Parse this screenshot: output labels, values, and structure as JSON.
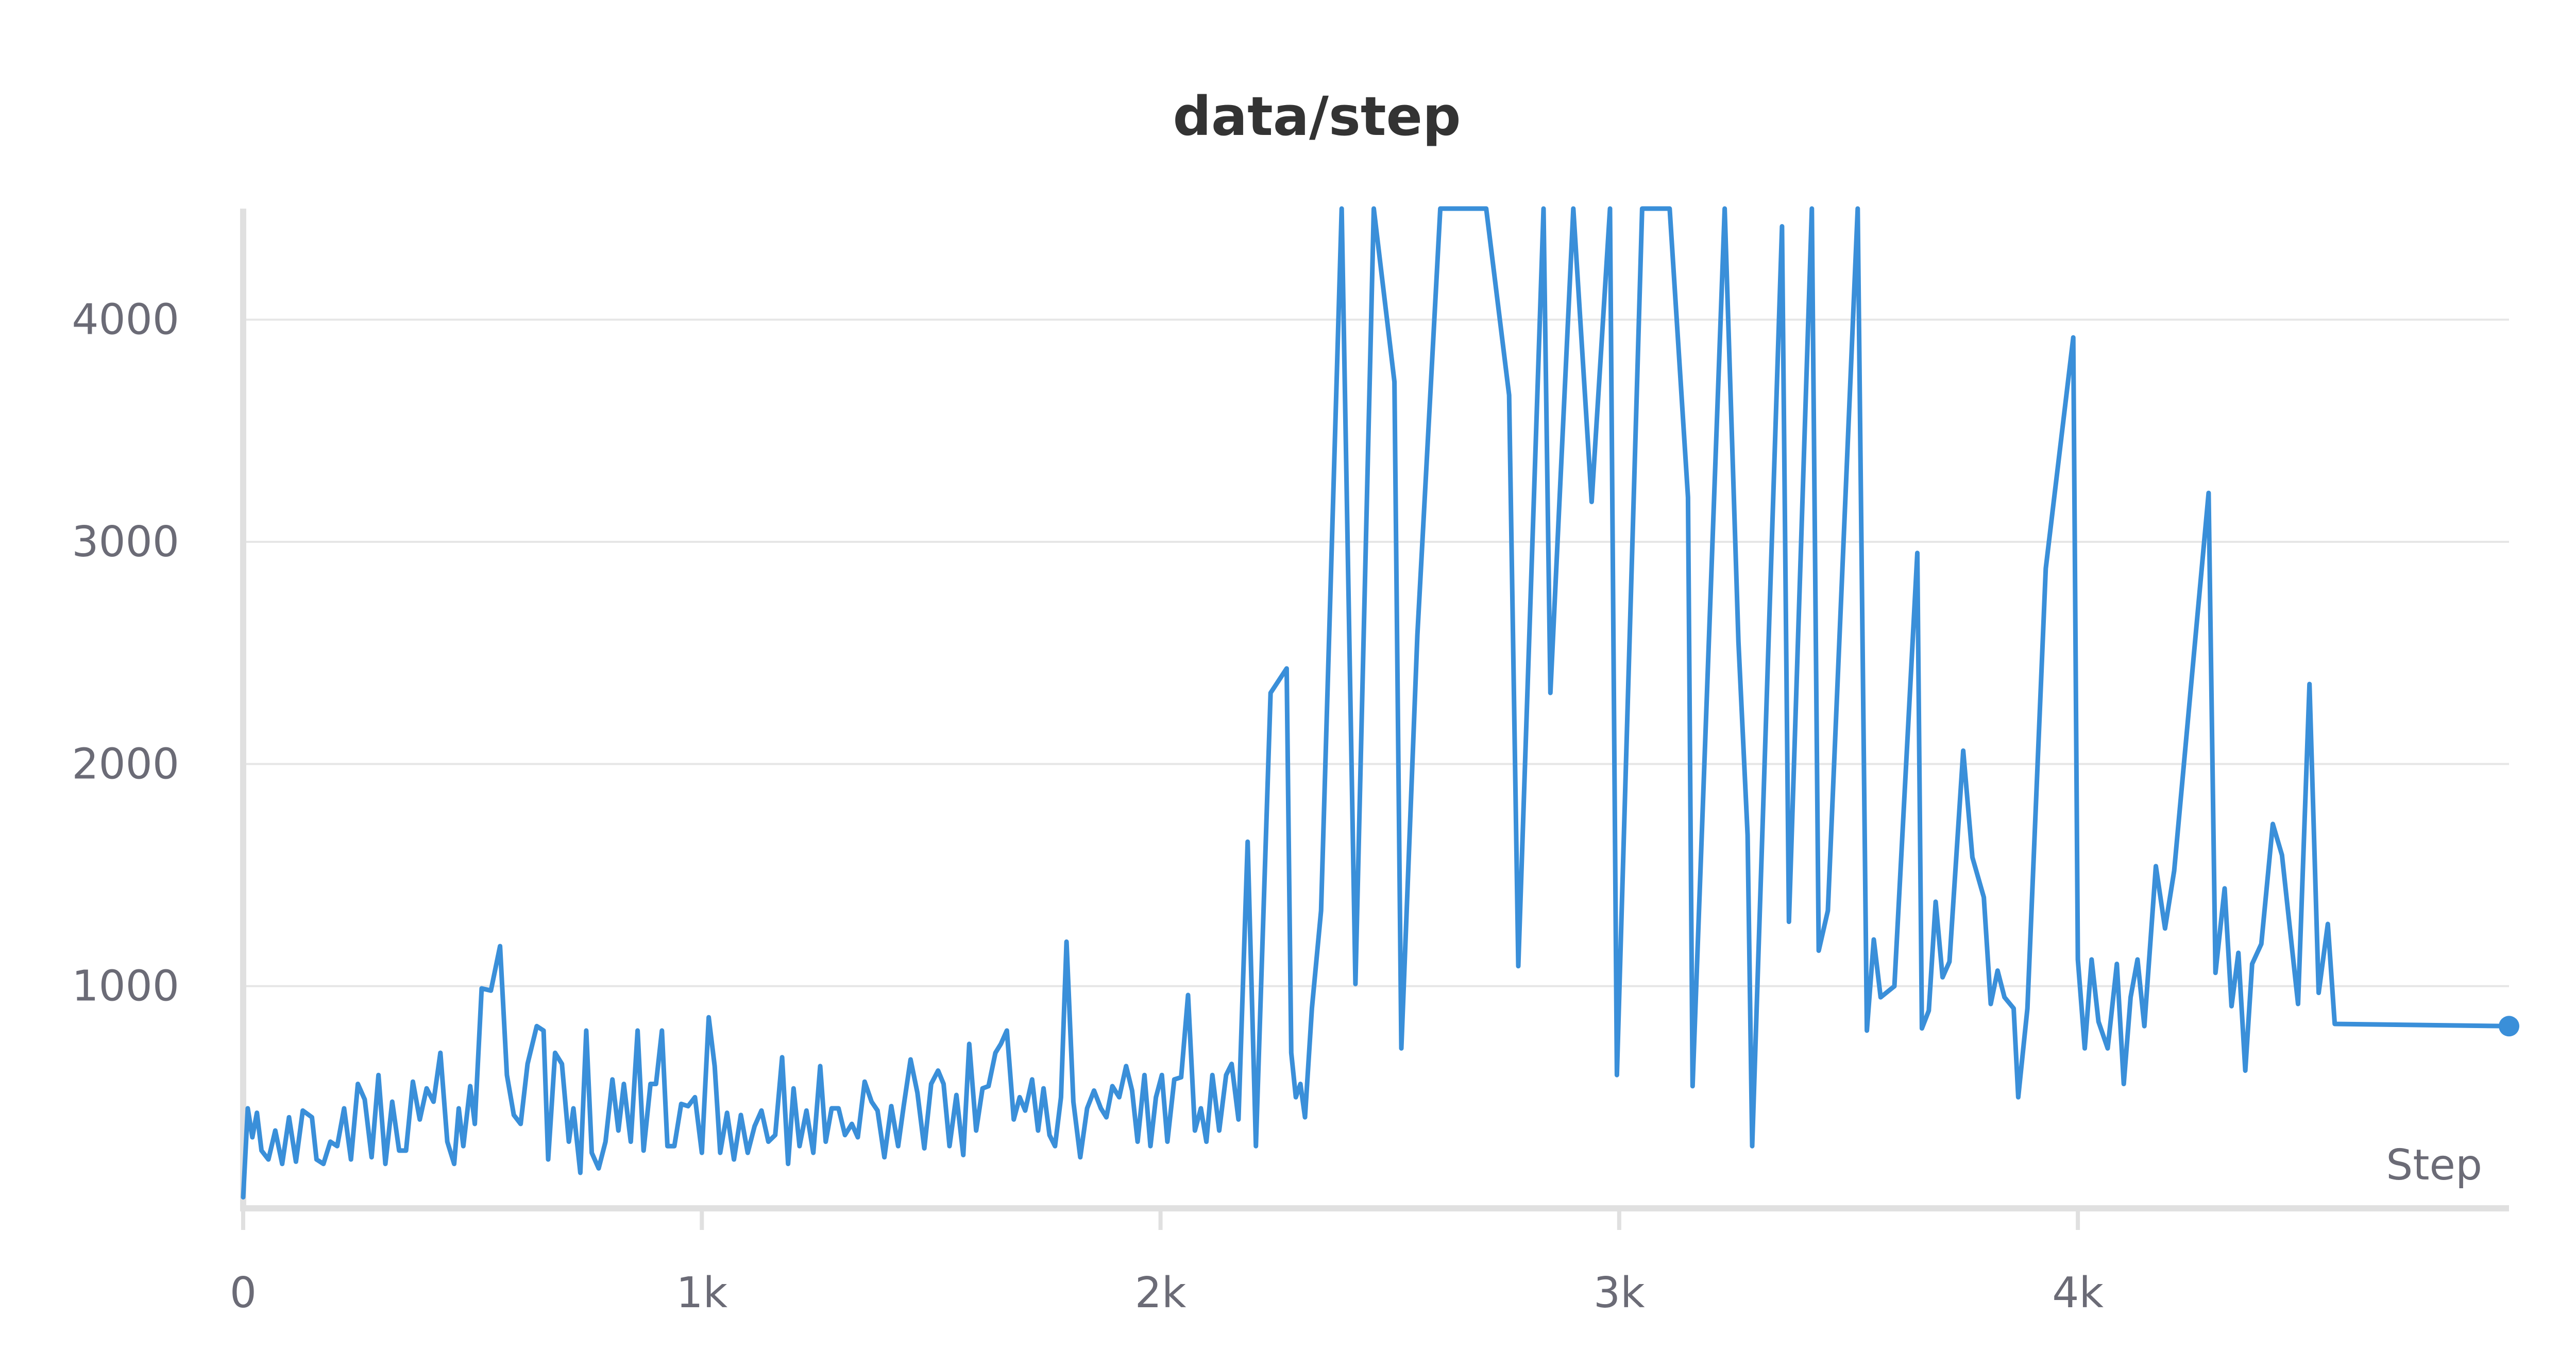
{
  "chart_data": {
    "type": "line",
    "title": "data/step",
    "xlabel": "Step",
    "ylabel": "",
    "xlim": [
      0,
      4940
    ],
    "ylim": [
      0,
      4500
    ],
    "x_ticks": [
      {
        "value": 0,
        "label": "0"
      },
      {
        "value": 1000,
        "label": "1k"
      },
      {
        "value": 2000,
        "label": "2k"
      },
      {
        "value": 3000,
        "label": "3k"
      },
      {
        "value": 4000,
        "label": "4k"
      }
    ],
    "y_ticks": [
      {
        "value": 1000,
        "label": "1000"
      },
      {
        "value": 2000,
        "label": "2000"
      },
      {
        "value": 3000,
        "label": "3000"
      },
      {
        "value": 4000,
        "label": "4000"
      }
    ],
    "grid": true,
    "color": "#3a8fd9",
    "series": [
      {
        "values": [
          [
            0,
            50
          ],
          [
            10,
            450
          ],
          [
            20,
            320
          ],
          [
            30,
            430
          ],
          [
            40,
            260
          ],
          [
            55,
            220
          ],
          [
            70,
            350
          ],
          [
            85,
            200
          ],
          [
            100,
            410
          ],
          [
            115,
            210
          ],
          [
            130,
            440
          ],
          [
            150,
            410
          ],
          [
            160,
            220
          ],
          [
            175,
            200
          ],
          [
            190,
            300
          ],
          [
            205,
            280
          ],
          [
            220,
            450
          ],
          [
            235,
            220
          ],
          [
            250,
            560
          ],
          [
            265,
            490
          ],
          [
            280,
            230
          ],
          [
            295,
            600
          ],
          [
            310,
            200
          ],
          [
            325,
            480
          ],
          [
            340,
            260
          ],
          [
            355,
            260
          ],
          [
            370,
            570
          ],
          [
            385,
            400
          ],
          [
            400,
            540
          ],
          [
            415,
            480
          ],
          [
            430,
            700
          ],
          [
            445,
            300
          ],
          [
            460,
            200
          ],
          [
            470,
            450
          ],
          [
            480,
            280
          ],
          [
            495,
            550
          ],
          [
            505,
            380
          ],
          [
            520,
            990
          ],
          [
            540,
            980
          ],
          [
            560,
            1180
          ],
          [
            575,
            600
          ],
          [
            590,
            420
          ],
          [
            605,
            380
          ],
          [
            620,
            650
          ],
          [
            640,
            820
          ],
          [
            655,
            800
          ],
          [
            665,
            220
          ],
          [
            680,
            700
          ],
          [
            695,
            650
          ],
          [
            710,
            300
          ],
          [
            720,
            450
          ],
          [
            735,
            160
          ],
          [
            748,
            800
          ],
          [
            760,
            250
          ],
          [
            775,
            180
          ],
          [
            790,
            300
          ],
          [
            805,
            580
          ],
          [
            818,
            350
          ],
          [
            830,
            560
          ],
          [
            845,
            300
          ],
          [
            860,
            800
          ],
          [
            873,
            260
          ],
          [
            888,
            560
          ],
          [
            900,
            560
          ],
          [
            913,
            800
          ],
          [
            925,
            280
          ],
          [
            940,
            280
          ],
          [
            955,
            470
          ],
          [
            970,
            460
          ],
          [
            985,
            500
          ],
          [
            1000,
            250
          ],
          [
            1015,
            860
          ],
          [
            1028,
            640
          ],
          [
            1040,
            250
          ],
          [
            1055,
            430
          ],
          [
            1070,
            220
          ],
          [
            1085,
            420
          ],
          [
            1100,
            250
          ],
          [
            1115,
            370
          ],
          [
            1130,
            440
          ],
          [
            1145,
            300
          ],
          [
            1160,
            330
          ],
          [
            1175,
            680
          ],
          [
            1188,
            200
          ],
          [
            1200,
            540
          ],
          [
            1213,
            280
          ],
          [
            1228,
            440
          ],
          [
            1243,
            250
          ],
          [
            1258,
            640
          ],
          [
            1270,
            300
          ],
          [
            1283,
            450
          ],
          [
            1298,
            450
          ],
          [
            1312,
            330
          ],
          [
            1327,
            380
          ],
          [
            1340,
            320
          ],
          [
            1355,
            570
          ],
          [
            1370,
            480
          ],
          [
            1383,
            440
          ],
          [
            1398,
            230
          ],
          [
            1413,
            460
          ],
          [
            1428,
            280
          ],
          [
            1440,
            460
          ],
          [
            1455,
            670
          ],
          [
            1470,
            520
          ],
          [
            1485,
            270
          ],
          [
            1500,
            560
          ],
          [
            1515,
            620
          ],
          [
            1527,
            560
          ],
          [
            1540,
            280
          ],
          [
            1555,
            510
          ],
          [
            1570,
            240
          ],
          [
            1583,
            740
          ],
          [
            1598,
            350
          ],
          [
            1612,
            540
          ],
          [
            1625,
            550
          ],
          [
            1640,
            700
          ],
          [
            1652,
            740
          ],
          [
            1665,
            800
          ],
          [
            1680,
            400
          ],
          [
            1693,
            500
          ],
          [
            1705,
            440
          ],
          [
            1720,
            580
          ],
          [
            1733,
            350
          ],
          [
            1745,
            540
          ],
          [
            1758,
            330
          ],
          [
            1770,
            280
          ],
          [
            1783,
            500
          ],
          [
            1795,
            1200
          ],
          [
            1810,
            480
          ],
          [
            1825,
            230
          ],
          [
            1840,
            450
          ],
          [
            1855,
            530
          ],
          [
            1870,
            450
          ],
          [
            1882,
            410
          ],
          [
            1895,
            550
          ],
          [
            1910,
            500
          ],
          [
            1925,
            640
          ],
          [
            1938,
            530
          ],
          [
            1950,
            300
          ],
          [
            1965,
            600
          ],
          [
            1978,
            280
          ],
          [
            1990,
            500
          ],
          [
            2003,
            600
          ],
          [
            2015,
            300
          ],
          [
            2030,
            580
          ],
          [
            2045,
            590
          ],
          [
            2060,
            960
          ],
          [
            2075,
            350
          ],
          [
            2088,
            450
          ],
          [
            2100,
            300
          ],
          [
            2113,
            600
          ],
          [
            2128,
            350
          ],
          [
            2143,
            600
          ],
          [
            2155,
            650
          ],
          [
            2170,
            400
          ],
          [
            2190,
            1650
          ],
          [
            2208,
            280
          ],
          [
            2240,
            2320
          ],
          [
            2275,
            2430
          ],
          [
            2285,
            700
          ],
          [
            2295,
            500
          ],
          [
            2305,
            560
          ],
          [
            2315,
            410
          ],
          [
            2330,
            900
          ],
          [
            2350,
            1340
          ],
          [
            2395,
            4500
          ],
          [
            2425,
            1010
          ],
          [
            2465,
            4500
          ],
          [
            2510,
            3720
          ],
          [
            2525,
            720
          ],
          [
            2560,
            2580
          ],
          [
            2610,
            4500
          ],
          [
            2710,
            4500
          ],
          [
            2760,
            3660
          ],
          [
            2780,
            1090
          ],
          [
            2835,
            4500
          ],
          [
            2850,
            2320
          ],
          [
            2900,
            4500
          ],
          [
            2940,
            3180
          ],
          [
            2980,
            4500
          ],
          [
            2995,
            600
          ],
          [
            3050,
            4500
          ],
          [
            3110,
            4500
          ],
          [
            3150,
            3200
          ],
          [
            3160,
            550
          ],
          [
            3230,
            4500
          ],
          [
            3260,
            2550
          ],
          [
            3280,
            1680
          ],
          [
            3290,
            280
          ],
          [
            3355,
            4420
          ],
          [
            3370,
            1290
          ],
          [
            3420,
            4500
          ],
          [
            3435,
            1160
          ],
          [
            3455,
            1340
          ],
          [
            3520,
            4500
          ],
          [
            3540,
            800
          ],
          [
            3555,
            1210
          ],
          [
            3570,
            950
          ],
          [
            3600,
            1000
          ],
          [
            3650,
            2950
          ],
          [
            3660,
            810
          ],
          [
            3675,
            890
          ],
          [
            3690,
            1380
          ],
          [
            3705,
            1040
          ],
          [
            3720,
            1110
          ],
          [
            3750,
            2060
          ],
          [
            3770,
            1580
          ],
          [
            3795,
            1400
          ],
          [
            3810,
            920
          ],
          [
            3825,
            1070
          ],
          [
            3840,
            950
          ],
          [
            3860,
            900
          ],
          [
            3870,
            500
          ],
          [
            3890,
            900
          ],
          [
            3930,
            2880
          ],
          [
            3990,
            3920
          ],
          [
            4000,
            1120
          ],
          [
            4015,
            720
          ],
          [
            4030,
            1120
          ],
          [
            4045,
            840
          ],
          [
            4065,
            720
          ],
          [
            4085,
            1100
          ],
          [
            4100,
            560
          ],
          [
            4115,
            950
          ],
          [
            4130,
            1120
          ],
          [
            4145,
            820
          ],
          [
            4170,
            1540
          ],
          [
            4190,
            1260
          ],
          [
            4210,
            1520
          ],
          [
            4285,
            3220
          ],
          [
            4300,
            1060
          ],
          [
            4320,
            1440
          ],
          [
            4335,
            910
          ],
          [
            4350,
            1150
          ],
          [
            4365,
            620
          ],
          [
            4380,
            1100
          ],
          [
            4400,
            1190
          ],
          [
            4425,
            1730
          ],
          [
            4445,
            1590
          ],
          [
            4480,
            920
          ],
          [
            4505,
            2360
          ],
          [
            4525,
            970
          ],
          [
            4545,
            1280
          ],
          [
            4560,
            830
          ],
          [
            4940,
            820
          ]
        ],
        "y_clip": 4500
      }
    ]
  }
}
